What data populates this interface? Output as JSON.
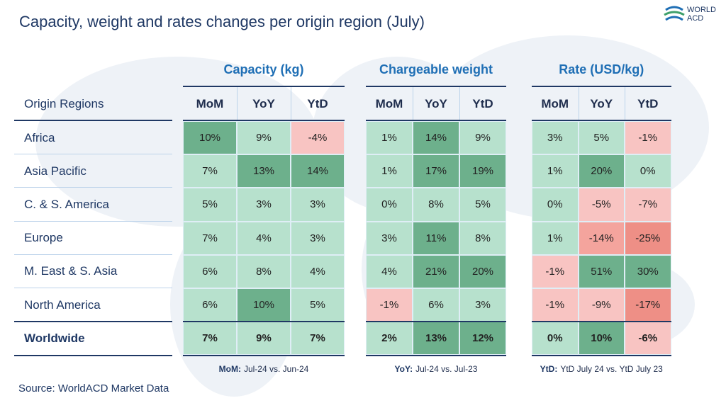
{
  "title": "Capacity, weight and rates changes per origin region (July)",
  "logo": {
    "line1": "WORLD",
    "line2": "ACD"
  },
  "table": {
    "row_header": "Origin Regions",
    "regions": [
      "Africa",
      "Asia Pacific",
      "C. & S. America",
      "Europe",
      "M. East & S. Asia",
      "North America",
      "Worldwide"
    ],
    "groups": [
      {
        "title": "Capacity (kg)",
        "columns": [
          "MoM",
          "YoY",
          "YtD"
        ],
        "rows": [
          [
            "10%",
            "9%",
            "-4%"
          ],
          [
            "7%",
            "13%",
            "14%"
          ],
          [
            "5%",
            "3%",
            "3%"
          ],
          [
            "7%",
            "4%",
            "3%"
          ],
          [
            "6%",
            "8%",
            "4%"
          ],
          [
            "6%",
            "10%",
            "5%"
          ],
          [
            "7%",
            "9%",
            "7%"
          ]
        ]
      },
      {
        "title": "Chargeable weight",
        "columns": [
          "MoM",
          "YoY",
          "YtD"
        ],
        "rows": [
          [
            "1%",
            "14%",
            "9%"
          ],
          [
            "1%",
            "17%",
            "19%"
          ],
          [
            "0%",
            "8%",
            "5%"
          ],
          [
            "3%",
            "11%",
            "8%"
          ],
          [
            "4%",
            "21%",
            "20%"
          ],
          [
            "-1%",
            "6%",
            "3%"
          ],
          [
            "2%",
            "13%",
            "12%"
          ]
        ]
      },
      {
        "title": "Rate (USD/kg)",
        "columns": [
          "MoM",
          "YoY",
          "YtD"
        ],
        "rows": [
          [
            "3%",
            "5%",
            "-1%"
          ],
          [
            "1%",
            "20%",
            "0%"
          ],
          [
            "0%",
            "-5%",
            "-7%"
          ],
          [
            "1%",
            "-14%",
            "-25%"
          ],
          [
            "-1%",
            "51%",
            "30%"
          ],
          [
            "-1%",
            "-9%",
            "-17%"
          ],
          [
            "0%",
            "10%",
            "-6%"
          ]
        ]
      }
    ]
  },
  "footnotes": [
    {
      "label": "MoM:",
      "text": "Jul-24 vs. Jun-24"
    },
    {
      "label": "YoY:",
      "text": "Jul-24 vs. Jul-23"
    },
    {
      "label": "YtD:",
      "text": "YtD July 24 vs. YtD July 23"
    }
  ],
  "source": "Source: WorldACD Market Data"
}
